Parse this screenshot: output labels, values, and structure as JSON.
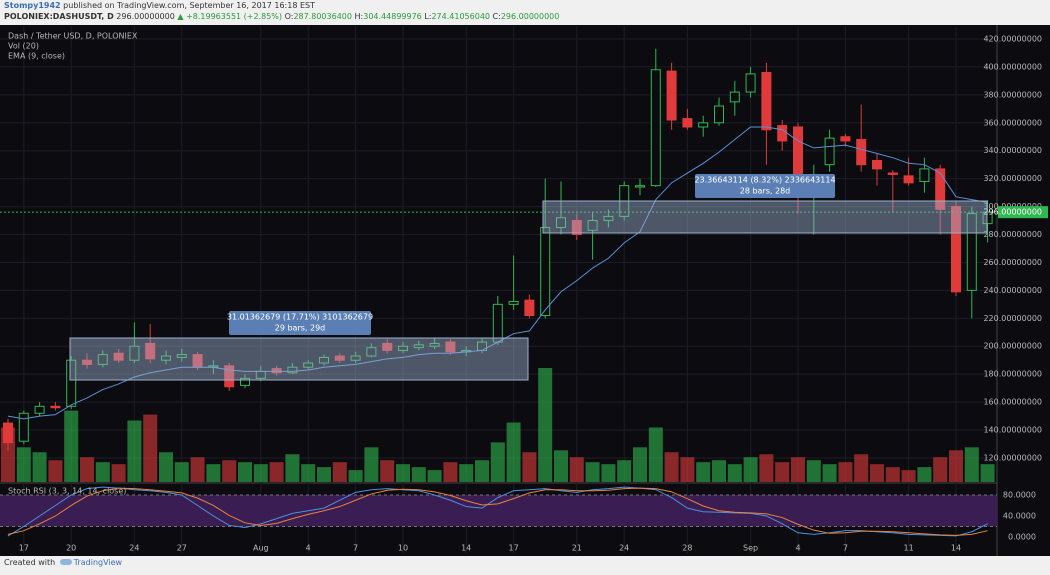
{
  "header": {
    "author": "Stompy1942",
    "published": "published on TradingView.com, September 16, 2017 16:18 EST",
    "symbol": "POLONIEX:DASHUSDT, D",
    "price": "296.00000000",
    "change": "▲ +8.19963551 (+2.85%)",
    "ohlc": [
      {
        "label": "O:",
        "value": "287.80036400"
      },
      {
        "label": "H:",
        "value": "304.44899976"
      },
      {
        "label": "L:",
        "value": "274.41056040"
      },
      {
        "label": "C:",
        "value": "296.00000000"
      }
    ]
  },
  "chart_data": [
    {
      "type": "candlestick",
      "title": "Dash / Tether USD, D, POLONIEX",
      "categories": [
        null,
        "17",
        null,
        null,
        "20",
        null,
        null,
        null,
        "24",
        null,
        null,
        "27",
        null,
        null,
        null,
        null,
        "Aug",
        null,
        null,
        "4",
        null,
        null,
        "7",
        null,
        null,
        "10",
        null,
        null,
        null,
        "14",
        null,
        null,
        "17",
        null,
        null,
        null,
        "21",
        null,
        null,
        "24",
        null,
        null,
        null,
        "28",
        null,
        null,
        null,
        "Sep",
        null,
        null,
        "4",
        null,
        null,
        "7",
        null,
        null,
        null,
        "11",
        null,
        null,
        "14",
        null,
        null
      ],
      "open": [
        145,
        132,
        152,
        157,
        157,
        190,
        187,
        195,
        190,
        202,
        190,
        192,
        194,
        185,
        186,
        172,
        177,
        184,
        181,
        185,
        188,
        193,
        190,
        193,
        202,
        197,
        199,
        200,
        203,
        196,
        197,
        203,
        230,
        233,
        222,
        285,
        290,
        283,
        290,
        293,
        314,
        315,
        397,
        363,
        357,
        360,
        375,
        382,
        396,
        358,
        357,
        313,
        330,
        350,
        348,
        333,
        324,
        322,
        318,
        327,
        300,
        240,
        287.800364
      ],
      "high": [
        148,
        154,
        160,
        160,
        193,
        195,
        197,
        198,
        217,
        216,
        197,
        198,
        196,
        190,
        188,
        180,
        186,
        186,
        188,
        190,
        194,
        195,
        196,
        202,
        205,
        203,
        204,
        206,
        205,
        200,
        206,
        236,
        265,
        237,
        320,
        318,
        295,
        296,
        298,
        318,
        320,
        413,
        403,
        370,
        365,
        378,
        390,
        400,
        403,
        362,
        360,
        330,
        355,
        352,
        373,
        338,
        326,
        335,
        335,
        330,
        304,
        300,
        304.44899976
      ],
      "low": [
        125,
        130,
        150,
        154,
        155,
        184,
        185,
        188,
        188,
        188,
        187,
        189,
        183,
        180,
        168,
        170,
        175,
        179,
        180,
        183,
        186,
        188,
        188,
        192,
        195,
        195,
        197,
        198,
        194,
        193,
        195,
        201,
        226,
        220,
        220,
        280,
        276,
        262,
        285,
        290,
        308,
        314,
        355,
        355,
        350,
        358,
        365,
        378,
        330,
        340,
        295,
        280,
        325,
        343,
        325,
        315,
        296,
        315,
        310,
        280,
        236,
        220,
        274.4105604
      ],
      "close": [
        131,
        152,
        157,
        156,
        190,
        187,
        194,
        190,
        200,
        191,
        193,
        194,
        185,
        186,
        171,
        177,
        182,
        181,
        185,
        188,
        192,
        190,
        193,
        199,
        197,
        200,
        201,
        202,
        196,
        197,
        203,
        230,
        232,
        222,
        285,
        292,
        280,
        290,
        293,
        315,
        315,
        398,
        362,
        357,
        360,
        372,
        382,
        395,
        355,
        347,
        312,
        323,
        349,
        347,
        330,
        327,
        323,
        317,
        327,
        298,
        239,
        295,
        296
      ],
      "up_color": "#2fb84f",
      "down_color": "#e03a3a",
      "volume": {
        "name": "Vol (20)",
        "ylim": [
          0,
          460
        ],
        "values": [
          55,
          35,
          30,
          22,
          72,
          25,
          20,
          18,
          62,
          68,
          30,
          20,
          25,
          18,
          22,
          20,
          18,
          20,
          28,
          18,
          15,
          20,
          12,
          35,
          22,
          18,
          15,
          12,
          20,
          18,
          22,
          40,
          60,
          30,
          115,
          32,
          25,
          20,
          18,
          22,
          35,
          55,
          30,
          25,
          20,
          22,
          18,
          25,
          28,
          20,
          25,
          22,
          18,
          20,
          28,
          18,
          15,
          12,
          15,
          25,
          32,
          35,
          18
        ]
      },
      "ema": {
        "name": "EMA (9, close)",
        "color": "#5b8fd9",
        "values": [
          150,
          148,
          150,
          151,
          158,
          163,
          169,
          173,
          178,
          181,
          183,
          185,
          185,
          185,
          183,
          182,
          182,
          182,
          182,
          183,
          185,
          186,
          187,
          189,
          191,
          192,
          194,
          195,
          195,
          196,
          197,
          203,
          209,
          211,
          226,
          239,
          247,
          256,
          263,
          274,
          282,
          305,
          317,
          324,
          331,
          339,
          348,
          357,
          357,
          355,
          347,
          342,
          343,
          344,
          341,
          338,
          335,
          331,
          330,
          324,
          307,
          305,
          303
        ]
      },
      "last_price": {
        "value": 296,
        "label": "296.00000000"
      },
      "ylim": [
        102.8,
        429.3
      ],
      "yticks": [
        {
          "value": 120,
          "label": "120.00000000"
        },
        {
          "value": 140,
          "label": "140.00000000"
        },
        {
          "value": 160,
          "label": "160.00000000"
        },
        {
          "value": 180,
          "label": "180.00000000"
        },
        {
          "value": 200,
          "label": "200.00000000"
        },
        {
          "value": 220,
          "label": "220.00000000"
        },
        {
          "value": 240,
          "label": "240.00000000"
        },
        {
          "value": 260,
          "label": "260.00000000"
        },
        {
          "value": 280,
          "label": "280.00000000"
        },
        {
          "value": 300,
          "label": "300.00000000"
        },
        {
          "value": 320,
          "label": "320.00000000"
        },
        {
          "value": 340,
          "label": "340.00000000"
        },
        {
          "value": 360,
          "label": "360.00000000"
        },
        {
          "value": 380,
          "label": "380.00000000"
        },
        {
          "value": 400,
          "label": "400.00000000"
        },
        {
          "value": 420,
          "label": "420.00000000"
        }
      ],
      "grid": true,
      "annotations": [
        {
          "lines": [
            "31.01362679 (17.71%) 3101362679",
            "29 bars, 29d"
          ]
        },
        {
          "lines": [
            "23.36643114 (8.32%) 2336643114",
            "28 bars, 28d"
          ]
        }
      ]
    },
    {
      "type": "line",
      "title": "Stoch RSI (3, 3, 14, 14, close)",
      "series": [
        {
          "color": "#4a90e2",
          "values": [
            2,
            20,
            40,
            60,
            80,
            92,
            95,
            93,
            90,
            88,
            85,
            80,
            60,
            40,
            22,
            18,
            25,
            35,
            45,
            50,
            55,
            70,
            85,
            90,
            92,
            90,
            88,
            80,
            70,
            58,
            55,
            75,
            88,
            90,
            92,
            88,
            85,
            90,
            92,
            95,
            93,
            90,
            75,
            55,
            48,
            47,
            46,
            45,
            40,
            25,
            8,
            5,
            8,
            12,
            12,
            10,
            8,
            5,
            4,
            3,
            2,
            10,
            25
          ]
        },
        {
          "color": "#e8833a",
          "values": [
            5,
            12,
            25,
            40,
            60,
            78,
            88,
            93,
            92,
            90,
            87,
            84,
            74,
            60,
            41,
            27,
            22,
            26,
            35,
            43,
            50,
            58,
            70,
            82,
            89,
            91,
            90,
            86,
            79,
            69,
            61,
            63,
            73,
            84,
            90,
            90,
            88,
            88,
            89,
            92,
            93,
            92,
            86,
            73,
            59,
            50,
            47,
            46,
            44,
            37,
            24,
            13,
            7,
            8,
            11,
            11,
            10,
            8,
            6,
            4,
            3,
            5,
            12
          ]
        }
      ],
      "bands": [
        20,
        80
      ],
      "band_color": "#3a1d52",
      "ylim": [
        -30.5,
        97.1
      ],
      "yticks": [
        {
          "value": 80,
          "label": "80.0000"
        },
        {
          "value": 40,
          "label": "40.0000"
        },
        {
          "value": 0,
          "label": "0.0000"
        }
      ]
    }
  ],
  "footer": {
    "created": "Created with",
    "brand": "TradingView"
  }
}
